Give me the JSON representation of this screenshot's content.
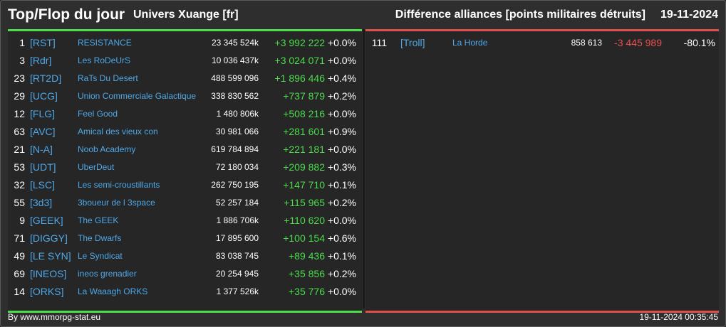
{
  "header": {
    "title": "Top/Flop du jour",
    "universe": "Univers Xuange [fr]",
    "subtitle": "Différence alliances [points militaires détruits]",
    "date": "19-11-2024"
  },
  "top": [
    {
      "rank": "1",
      "tag": "[RST]",
      "name": "RESISTANCE",
      "points": "23 345 524k",
      "diff": "+3 992 222",
      "pct": "+0.0%"
    },
    {
      "rank": "3",
      "tag": "[Rdr]",
      "name": "Les RoDeUrS",
      "points": "10 036 437k",
      "diff": "+3 024 071",
      "pct": "+0.0%"
    },
    {
      "rank": "23",
      "tag": "[RT2D]",
      "name": "RaTs Du Desert",
      "points": "488 599 096",
      "diff": "+1 896 446",
      "pct": "+0.4%"
    },
    {
      "rank": "29",
      "tag": "[UCG]",
      "name": "Union Commerciale Galactique",
      "points": "338 830 562",
      "diff": "+737 879",
      "pct": "+0.2%"
    },
    {
      "rank": "12",
      "tag": "[FLG]",
      "name": "Feel Good",
      "points": "1 480 806k",
      "diff": "+508 216",
      "pct": "+0.0%"
    },
    {
      "rank": "63",
      "tag": "[AVC]",
      "name": "Amical des vieux con",
      "points": "30 981 066",
      "diff": "+281 601",
      "pct": "+0.9%"
    },
    {
      "rank": "21",
      "tag": "[N-A]",
      "name": "Noob Academy",
      "points": "619 784 894",
      "diff": "+221 181",
      "pct": "+0.0%"
    },
    {
      "rank": "53",
      "tag": "[UDT]",
      "name": "UberDeut",
      "points": "72 180 034",
      "diff": "+209 882",
      "pct": "+0.3%"
    },
    {
      "rank": "32",
      "tag": "[LSC]",
      "name": "Les semi-croustillants",
      "points": "262 750 195",
      "diff": "+147 710",
      "pct": "+0.1%"
    },
    {
      "rank": "55",
      "tag": "[3d3]",
      "name": "3boueur de l 3space",
      "points": "52 257 184",
      "diff": "+115 965",
      "pct": "+0.2%"
    },
    {
      "rank": "9",
      "tag": "[GEEK]",
      "name": "The GEEK",
      "points": "1 886 706k",
      "diff": "+110 620",
      "pct": "+0.0%"
    },
    {
      "rank": "71",
      "tag": "[DIGGY]",
      "name": "The Dwarfs",
      "points": "17 895 600",
      "diff": "+100 154",
      "pct": "+0.6%"
    },
    {
      "rank": "49",
      "tag": "[LE SYN]",
      "name": "Le Syndicat",
      "points": "83 038 745",
      "diff": "+89 436",
      "pct": "+0.1%"
    },
    {
      "rank": "69",
      "tag": "[INEOS]",
      "name": "ineos grenadier",
      "points": "20 254 945",
      "diff": "+35 856",
      "pct": "+0.2%"
    },
    {
      "rank": "14",
      "tag": "[ORKS]",
      "name": "La Waaagh ORKS",
      "points": "1 377 526k",
      "diff": "+35 776",
      "pct": "+0.0%"
    }
  ],
  "flop": [
    {
      "rank": "111",
      "tag": "[Troll]",
      "name": "La Horde",
      "points": "858 613",
      "diff": "-3 445 989",
      "pct": "-80.1%"
    }
  ],
  "footer": {
    "credit": "By www.mmorpg-stat.eu",
    "timestamp": "19-11-2024 00:35:45"
  },
  "colors": {
    "positive": "#4cdc4c",
    "negative": "#e85050",
    "link": "#4ea8e8"
  }
}
